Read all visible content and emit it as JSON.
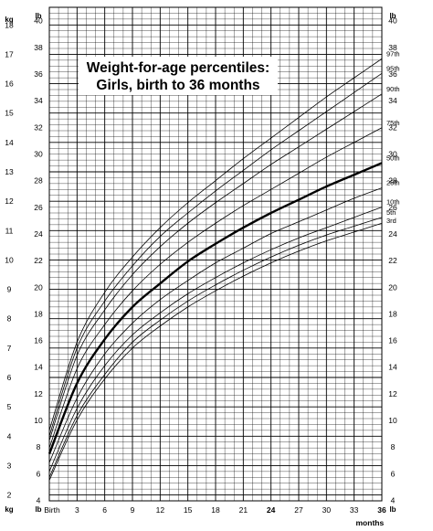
{
  "chart_data": {
    "type": "line",
    "title": [
      "Weight-for-age percentiles:",
      "Girls, birth to 36 months"
    ],
    "units": {
      "kg": "kg",
      "lb": "lb"
    },
    "x_ticks": [
      {
        "v": 0,
        "label": "Birth"
      },
      {
        "v": 3,
        "label": "3"
      },
      {
        "v": 6,
        "label": "6"
      },
      {
        "v": 9,
        "label": "9"
      },
      {
        "v": 12,
        "label": "12"
      },
      {
        "v": 15,
        "label": "15"
      },
      {
        "v": 18,
        "label": "18"
      },
      {
        "v": 21,
        "label": "21"
      },
      {
        "v": 24,
        "label": "24",
        "bold": true
      },
      {
        "v": 27,
        "label": "27"
      },
      {
        "v": 30,
        "label": "30"
      },
      {
        "v": 33,
        "label": "33"
      },
      {
        "v": 36,
        "label": "36",
        "bold": true
      }
    ],
    "x_range": [
      0,
      36
    ],
    "months_label": "months",
    "kg_range": [
      1.8,
      18.6
    ],
    "kg_ticks": [
      "2",
      "3",
      "4",
      "5",
      "6",
      "7",
      "8",
      "9",
      "10",
      "11",
      "12",
      "13",
      "14",
      "15",
      "16",
      "17",
      "18"
    ],
    "lb_ticks": [
      "4",
      "6",
      "8",
      "10",
      "12",
      "14",
      "16",
      "18",
      "20",
      "22",
      "24",
      "26",
      "28",
      "30",
      "32",
      "34",
      "36",
      "38",
      "40"
    ],
    "grid": true,
    "series": [
      {
        "name": "97th",
        "bold": false,
        "x": [
          0,
          3,
          6,
          9,
          12,
          15,
          18,
          21,
          24,
          27,
          30,
          33,
          36
        ],
        "values": [
          4.2,
          7.2,
          8.9,
          10.1,
          11.1,
          11.95,
          12.7,
          13.45,
          14.15,
          14.85,
          15.55,
          16.2,
          16.85
        ]
      },
      {
        "name": "95th",
        "bold": false,
        "x": [
          0,
          3,
          6,
          9,
          12,
          15,
          18,
          21,
          24,
          27,
          30,
          33,
          36
        ],
        "values": [
          4.0,
          7.0,
          8.6,
          9.8,
          10.8,
          11.6,
          12.35,
          13.05,
          13.75,
          14.4,
          15.05,
          15.7,
          16.35
        ]
      },
      {
        "name": "90th",
        "bold": false,
        "x": [
          0,
          3,
          6,
          9,
          12,
          15,
          18,
          21,
          24,
          27,
          30,
          33,
          36
        ],
        "values": [
          3.85,
          6.75,
          8.3,
          9.5,
          10.45,
          11.25,
          11.95,
          12.6,
          13.25,
          13.85,
          14.45,
          15.05,
          15.65
        ]
      },
      {
        "name": "75th",
        "bold": false,
        "x": [
          0,
          3,
          6,
          9,
          12,
          15,
          18,
          21,
          24,
          27,
          30,
          33,
          36
        ],
        "values": [
          3.6,
          6.3,
          7.8,
          8.95,
          9.85,
          10.6,
          11.25,
          11.85,
          12.4,
          12.95,
          13.5,
          14.0,
          14.5
        ]
      },
      {
        "name": "50th",
        "bold": true,
        "x": [
          0,
          3,
          6,
          9,
          12,
          15,
          18,
          21,
          24,
          27,
          30,
          33,
          36
        ],
        "values": [
          3.4,
          5.8,
          7.3,
          8.4,
          9.2,
          9.95,
          10.55,
          11.1,
          11.6,
          12.05,
          12.5,
          12.9,
          13.3
        ]
      },
      {
        "name": "25th",
        "bold": false,
        "x": [
          0,
          3,
          6,
          9,
          12,
          15,
          18,
          21,
          24,
          27,
          30,
          33,
          36
        ],
        "values": [
          3.1,
          5.3,
          6.8,
          7.85,
          8.65,
          9.3,
          9.9,
          10.4,
          10.9,
          11.3,
          11.7,
          12.1,
          12.45
        ]
      },
      {
        "name": "10th",
        "bold": false,
        "x": [
          0,
          3,
          6,
          9,
          12,
          15,
          18,
          21,
          24,
          27,
          30,
          33,
          36
        ],
        "values": [
          2.8,
          4.95,
          6.4,
          7.45,
          8.2,
          8.85,
          9.4,
          9.9,
          10.35,
          10.75,
          11.1,
          11.45,
          11.8
        ]
      },
      {
        "name": "5th",
        "bold": false,
        "x": [
          0,
          3,
          6,
          9,
          12,
          15,
          18,
          21,
          24,
          27,
          30,
          33,
          36
        ],
        "values": [
          2.6,
          4.7,
          6.1,
          7.2,
          7.95,
          8.6,
          9.15,
          9.65,
          10.1,
          10.5,
          10.85,
          11.15,
          11.45
        ]
      },
      {
        "name": "3rd",
        "bold": false,
        "x": [
          0,
          3,
          6,
          9,
          12,
          15,
          18,
          21,
          24,
          27,
          30,
          33,
          36
        ],
        "values": [
          2.5,
          4.55,
          5.95,
          7.0,
          7.75,
          8.4,
          8.95,
          9.45,
          9.9,
          10.3,
          10.65,
          10.95,
          11.25
        ]
      }
    ]
  }
}
